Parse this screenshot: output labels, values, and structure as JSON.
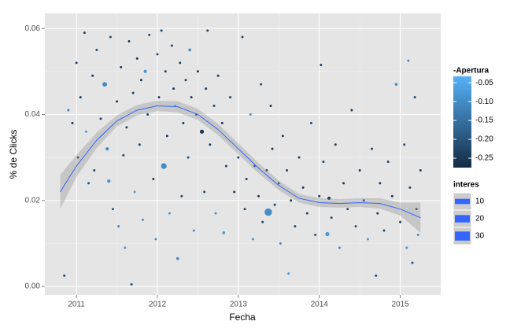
{
  "chart_data": {
    "type": "scatter",
    "x_label": "Fecha",
    "y_label": "% de Clicks",
    "xlim": [
      2010.61,
      2015.5
    ],
    "ylim": [
      -0.002,
      0.0635
    ],
    "xticks": [
      2011,
      2012,
      2013,
      2014,
      2015
    ],
    "yticks": [
      {
        "value": 0,
        "label": "0.00"
      },
      {
        "value": 0.02,
        "label": "0.02"
      },
      {
        "value": 0.04,
        "label": "0.04"
      },
      {
        "value": 0.06,
        "label": "0.06"
      }
    ],
    "grid": true,
    "points": {
      "x": [
        2010.85,
        2010.9,
        2010.95,
        2011.0,
        2011.02,
        2011.05,
        2011.1,
        2011.12,
        2011.15,
        2011.2,
        2011.22,
        2011.25,
        2011.3,
        2011.35,
        2011.38,
        2011.4,
        2011.42,
        2011.45,
        2011.5,
        2011.52,
        2011.55,
        2011.58,
        2011.6,
        2011.62,
        2011.65,
        2011.68,
        2011.7,
        2011.72,
        2011.75,
        2011.78,
        2011.8,
        2011.82,
        2011.85,
        2011.88,
        2011.9,
        2011.95,
        2011.98,
        2012.0,
        2012.02,
        2012.05,
        2012.08,
        2012.1,
        2012.12,
        2012.15,
        2012.18,
        2012.2,
        2012.22,
        2012.25,
        2012.28,
        2012.3,
        2012.32,
        2012.35,
        2012.38,
        2012.4,
        2012.42,
        2012.45,
        2012.48,
        2012.5,
        2012.55,
        2012.58,
        2012.6,
        2012.62,
        2012.65,
        2012.7,
        2012.72,
        2012.75,
        2012.8,
        2012.82,
        2012.85,
        2012.9,
        2012.95,
        2013.0,
        2013.05,
        2013.08,
        2013.1,
        2013.15,
        2013.18,
        2013.2,
        2013.25,
        2013.28,
        2013.3,
        2013.35,
        2013.37,
        2013.4,
        2013.42,
        2013.45,
        2013.5,
        2013.52,
        2013.55,
        2013.6,
        2013.62,
        2013.65,
        2013.7,
        2013.75,
        2013.8,
        2013.85,
        2013.9,
        2013.95,
        2014.0,
        2014.02,
        2014.05,
        2014.1,
        2014.12,
        2014.15,
        2014.2,
        2014.25,
        2014.3,
        2014.35,
        2014.4,
        2014.45,
        2014.5,
        2014.55,
        2014.6,
        2014.65,
        2014.7,
        2014.72,
        2014.75,
        2014.8,
        2014.85,
        2014.9,
        2014.95,
        2015.0,
        2015.05,
        2015.08,
        2015.1,
        2015.12,
        2015.15,
        2015.18,
        2015.2,
        2015.22,
        2015.25
      ],
      "y": [
        0.0025,
        0.041,
        0.038,
        0.052,
        0.03,
        0.044,
        0.059,
        0.036,
        0.024,
        0.049,
        0.027,
        0.055,
        0.039,
        0.047,
        0.032,
        0.0245,
        0.058,
        0.018,
        0.043,
        0.014,
        0.051,
        0.0305,
        0.009,
        0.037,
        0.057,
        0.0005,
        0.045,
        0.022,
        0.053,
        0.033,
        0.048,
        0.0155,
        0.05,
        0.04,
        0.0585,
        0.025,
        0.011,
        0.054,
        0.044,
        0.0595,
        0.028,
        0.05,
        0.035,
        0.017,
        0.056,
        0.046,
        0.042,
        0.0065,
        0.052,
        0.021,
        0.038,
        0.048,
        0.03,
        0.055,
        0.044,
        0.013,
        0.04,
        0.05,
        0.036,
        0.022,
        0.046,
        0.0595,
        0.033,
        0.042,
        0.017,
        0.049,
        0.038,
        0.0125,
        0.028,
        0.044,
        0.022,
        0.03,
        0.058,
        0.018,
        0.025,
        0.04,
        0.011,
        0.028,
        0.021,
        0.047,
        0.015,
        0.027,
        0.0173,
        0.042,
        0.032,
        0.019,
        0.024,
        0.01,
        0.035,
        0.027,
        0.003,
        0.02,
        0.014,
        0.03,
        0.023,
        0.017,
        0.038,
        0.012,
        0.021,
        0.0515,
        0.029,
        0.0122,
        0.0205,
        0.016,
        0.033,
        0.009,
        0.024,
        0.018,
        0.041,
        0.014,
        0.027,
        0.02,
        0.011,
        0.032,
        0.0025,
        0.017,
        0.024,
        0.013,
        0.029,
        0.021,
        0.047,
        0.015,
        0.033,
        0.009,
        0.0525,
        0.023,
        0.0055,
        0.044,
        0.018,
        0.012,
        0.027
      ],
      "apertura": [
        -0.22,
        -0.12,
        -0.25,
        -0.24,
        -0.22,
        -0.25,
        -0.24,
        -0.08,
        -0.2,
        -0.25,
        -0.23,
        -0.22,
        -0.24,
        -0.1,
        -0.1,
        -0.09,
        -0.23,
        -0.21,
        -0.25,
        -0.12,
        -0.24,
        -0.22,
        -0.08,
        -0.24,
        -0.25,
        -0.22,
        -0.23,
        -0.07,
        -0.25,
        -0.24,
        -0.26,
        -0.1,
        -0.08,
        -0.24,
        -0.22,
        -0.25,
        -0.1,
        -0.24,
        -0.25,
        -0.22,
        -0.1,
        -0.24,
        -0.26,
        -0.08,
        -0.23,
        -0.25,
        -0.06,
        -0.1,
        -0.24,
        -0.22,
        -0.25,
        -0.23,
        -0.2,
        -0.1,
        -0.25,
        -0.09,
        -0.24,
        -0.25,
        -0.26,
        -0.23,
        -0.24,
        -0.22,
        -0.25,
        -0.22,
        -0.09,
        -0.24,
        -0.25,
        -0.08,
        -0.23,
        -0.24,
        -0.25,
        -0.22,
        -0.24,
        -0.24,
        -0.25,
        -0.1,
        -0.08,
        -0.24,
        -0.25,
        -0.23,
        -0.22,
        -0.25,
        -0.1,
        -0.24,
        -0.26,
        -0.24,
        -0.22,
        -0.1,
        -0.24,
        -0.23,
        -0.08,
        -0.25,
        -0.22,
        -0.24,
        -0.25,
        -0.23,
        -0.22,
        -0.2,
        -0.25,
        -0.24,
        -0.23,
        -0.08,
        -0.25,
        -0.22,
        -0.24,
        -0.1,
        -0.25,
        -0.23,
        -0.24,
        -0.22,
        -0.25,
        -0.24,
        -0.08,
        -0.23,
        -0.22,
        -0.25,
        -0.24,
        -0.22,
        -0.23,
        -0.25,
        -0.1,
        -0.24,
        -0.22,
        -0.08,
        -0.1,
        -0.24,
        -0.2,
        -0.23,
        -0.25,
        -0.1,
        -0.24
      ],
      "interes": [
        2,
        2,
        2,
        2,
        2,
        2,
        2,
        2,
        2,
        2,
        2,
        2,
        2,
        8,
        4,
        4,
        2,
        2,
        2,
        2,
        2,
        2,
        2,
        2,
        2,
        2,
        2,
        2,
        2,
        2,
        2,
        2,
        4,
        2,
        2,
        2,
        2,
        2,
        2,
        2,
        12,
        2,
        2,
        2,
        2,
        2,
        2,
        3,
        2,
        2,
        2,
        2,
        2,
        3,
        2,
        2,
        2,
        2,
        6,
        2,
        2,
        2,
        2,
        2,
        2,
        2,
        2,
        3,
        2,
        2,
        2,
        2,
        2,
        2,
        2,
        2,
        2,
        2,
        2,
        2,
        2,
        2,
        20,
        2,
        2,
        2,
        2,
        2,
        2,
        2,
        2,
        2,
        2,
        2,
        2,
        2,
        2,
        2,
        2,
        2,
        2,
        6,
        4,
        2,
        2,
        2,
        2,
        2,
        2,
        2,
        2,
        2,
        2,
        2,
        2,
        2,
        2,
        2,
        2,
        2,
        3,
        2,
        2,
        2,
        2,
        2,
        2,
        2,
        2,
        2,
        2
      ]
    },
    "smooth": {
      "color": "#3366ff",
      "x": [
        2010.8,
        2011.0,
        2011.25,
        2011.5,
        2011.75,
        2012.0,
        2012.25,
        2012.5,
        2012.75,
        2013.0,
        2013.25,
        2013.5,
        2013.75,
        2014.0,
        2014.25,
        2014.5,
        2014.75,
        2015.0,
        2015.25
      ],
      "y": [
        0.022,
        0.028,
        0.034,
        0.0385,
        0.041,
        0.042,
        0.0418,
        0.04,
        0.0365,
        0.032,
        0.0275,
        0.0235,
        0.0205,
        0.0195,
        0.0193,
        0.0195,
        0.0193,
        0.018,
        0.016
      ],
      "lower": [
        0.018,
        0.0255,
        0.0322,
        0.0372,
        0.0398,
        0.0408,
        0.0405,
        0.0387,
        0.0352,
        0.0307,
        0.0263,
        0.0224,
        0.0195,
        0.0185,
        0.0183,
        0.0185,
        0.0181,
        0.0165,
        0.0125
      ],
      "upper": [
        0.026,
        0.0305,
        0.0358,
        0.0398,
        0.0422,
        0.0432,
        0.0431,
        0.0413,
        0.0378,
        0.0333,
        0.0287,
        0.0246,
        0.0215,
        0.0205,
        0.0203,
        0.0205,
        0.0205,
        0.0195,
        0.0195
      ]
    },
    "color_legend": {
      "title": "-Apertura",
      "low_color": "#132b43",
      "high_color": "#56b1f7",
      "lim": [
        -0.275,
        -0.033
      ],
      "ticks": [
        {
          "value": -0.05,
          "label": "-0.05"
        },
        {
          "value": -0.1,
          "label": "-0.10"
        },
        {
          "value": -0.15,
          "label": "-0.15"
        },
        {
          "value": -0.2,
          "label": "-0.20"
        },
        {
          "value": -0.25,
          "label": "-0.25"
        }
      ]
    },
    "size_legend": {
      "title": "interes",
      "values": [
        10,
        20,
        30
      ],
      "color": "#3366ff"
    }
  }
}
